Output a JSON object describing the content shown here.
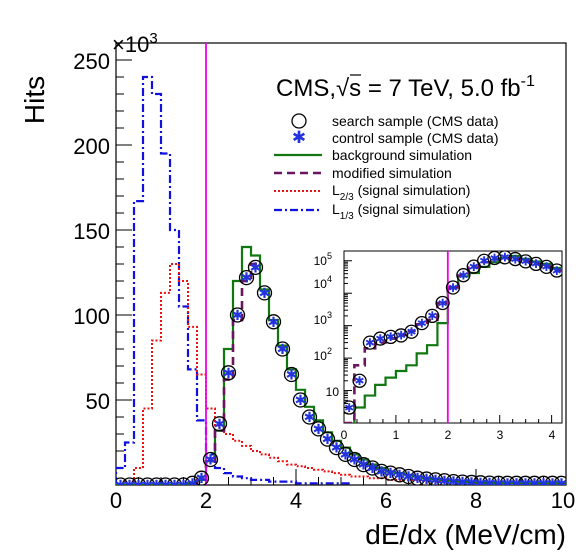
{
  "chart_data": [
    {
      "type": "line",
      "exponent_label": "×10",
      "exponent_power": "3",
      "ylabel": "Hits",
      "xlabel": "dE/dx (MeV/cm)",
      "xlim": [
        0,
        10
      ],
      "ylim": [
        0,
        260
      ],
      "x_ticks": [
        "0",
        "2",
        "4",
        "6",
        "8",
        "10"
      ],
      "y_ticks": [
        "50",
        "100",
        "150",
        "200",
        "250"
      ],
      "cut_line_x": 2,
      "title_parts": {
        "experiment": "CMS,",
        "sqrt": "√s",
        "energy": " = 7 TeV, 5.0 fb",
        "lumi_exp": "-1"
      },
      "legend_entries": [
        {
          "id": "search",
          "label": "search sample (CMS data)",
          "style": "circle"
        },
        {
          "id": "control",
          "label": "control sample (CMS data)",
          "style": "star"
        },
        {
          "id": "background",
          "label": "background simulation",
          "style": "solid"
        },
        {
          "id": "modified",
          "label": "modified simulation",
          "style": "dashed"
        },
        {
          "id": "l23",
          "label_prefix": "L",
          "label_sub": "2/3",
          "label_suffix": " (signal simulation)",
          "style": "dotted"
        },
        {
          "id": "l13",
          "label_prefix": "L",
          "label_sub": "1/3",
          "label_suffix": " (signal simulation)",
          "style": "dashdot"
        }
      ],
      "colors": {
        "background": "#117711",
        "modified": "#6b1560",
        "l23": "#ee1111",
        "l13": "#1111dd",
        "cut": "#ee00ee",
        "control": "#2233dd",
        "search": "#000000"
      },
      "bin_width": 0.2,
      "series": [
        {
          "id": "l13",
          "x": [
            0.0,
            0.2,
            0.4,
            0.6,
            0.8,
            1.0,
            1.2,
            1.4,
            1.6,
            1.8,
            2.0,
            2.2,
            2.4,
            2.6,
            2.8,
            3.0,
            3.2,
            3.4,
            3.6,
            3.8,
            4.0,
            4.4,
            5.0
          ],
          "values": [
            10,
            25,
            167,
            240,
            230,
            195,
            150,
            105,
            68,
            38,
            18,
            10,
            7,
            5,
            4,
            3,
            3,
            2,
            2,
            2,
            1,
            1,
            1
          ]
        },
        {
          "id": "l23",
          "x": [
            0.0,
            0.2,
            0.4,
            0.6,
            0.8,
            1.0,
            1.2,
            1.4,
            1.6,
            1.8,
            2.0,
            2.2,
            2.4,
            2.6,
            2.8,
            3.0,
            3.2,
            3.4,
            3.6,
            3.8,
            4.0,
            4.2,
            4.4,
            4.6,
            4.8,
            5.0,
            5.2,
            5.4,
            5.6,
            5.8,
            6.0,
            6.5,
            7.0,
            7.5,
            8.0
          ],
          "values": [
            0,
            2,
            10,
            45,
            85,
            113,
            130,
            120,
            93,
            65,
            45,
            35,
            30,
            26,
            23,
            20,
            18,
            16,
            14,
            12,
            11,
            10,
            9,
            8,
            7,
            6,
            5,
            5,
            4,
            4,
            3,
            3,
            2,
            2,
            1
          ]
        },
        {
          "id": "background",
          "x": [
            0.0,
            0.2,
            0.4,
            0.6,
            0.8,
            1.0,
            1.2,
            1.4,
            1.6,
            1.8,
            2.0,
            2.2,
            2.4,
            2.6,
            2.8,
            3.0,
            3.2,
            3.4,
            3.6,
            3.8,
            4.0,
            4.2,
            4.4,
            4.6,
            4.8,
            5.0,
            5.2,
            5.4,
            5.6,
            5.8,
            6.0,
            6.2,
            6.4,
            6.6,
            6.8,
            7.0,
            7.2,
            7.4,
            7.6,
            7.8,
            8.0,
            8.2,
            8.4,
            8.6,
            8.8,
            9.0,
            9.2,
            9.4,
            9.6,
            9.8
          ],
          "values": [
            0,
            0,
            0,
            0,
            0,
            0,
            0,
            0,
            1,
            3,
            14,
            32,
            80,
            120,
            140,
            135,
            115,
            97,
            82,
            68,
            56,
            46,
            38,
            31,
            26,
            22,
            18,
            15,
            12,
            10,
            8,
            7,
            6,
            5,
            4,
            3.5,
            3,
            2.5,
            2,
            1.8,
            1.5,
            1.2,
            1,
            1,
            1,
            1,
            1,
            1,
            1,
            1
          ]
        },
        {
          "id": "modified",
          "x": [
            1.8,
            2.0,
            2.2,
            2.4,
            2.6,
            2.8,
            3.0
          ],
          "values": [
            3,
            14,
            32,
            62,
            97,
            120,
            130
          ]
        }
      ],
      "points": [
        {
          "id": "search",
          "x": [
            0.1,
            0.3,
            0.5,
            0.7,
            0.9,
            1.1,
            1.3,
            1.5,
            1.7,
            1.9,
            2.1,
            2.3,
            2.5,
            2.7,
            2.9,
            3.1,
            3.3,
            3.5,
            3.7,
            3.9,
            4.1,
            4.3,
            4.5,
            4.7,
            4.9,
            5.1,
            5.3,
            5.5,
            5.7,
            5.9,
            6.1,
            6.3,
            6.5,
            6.7,
            6.9,
            7.1,
            7.3,
            7.5,
            7.7,
            7.9,
            8.1,
            8.3,
            8.5,
            8.7,
            8.9,
            9.1,
            9.3,
            9.5,
            9.7,
            9.9
          ],
          "values": [
            0,
            0,
            0,
            0,
            0,
            0,
            0,
            0,
            1,
            4,
            15,
            36,
            66,
            100,
            122,
            128,
            113,
            96,
            80,
            65,
            50,
            40,
            33,
            27,
            22,
            18,
            15,
            12,
            10,
            8,
            7,
            6,
            5,
            4,
            3.5,
            3,
            2.5,
            2,
            1.7,
            1.5,
            1.3,
            1.1,
            1,
            1,
            1,
            1,
            1,
            1,
            1,
            1
          ]
        },
        {
          "id": "control",
          "x": [
            0.1,
            0.3,
            0.5,
            0.7,
            0.9,
            1.1,
            1.3,
            1.5,
            1.7,
            1.9,
            2.1,
            2.3,
            2.5,
            2.7,
            2.9,
            3.1,
            3.3,
            3.5,
            3.7,
            3.9,
            4.1,
            4.3,
            4.5,
            4.7,
            4.9,
            5.1,
            5.3,
            5.5,
            5.7,
            5.9,
            6.1,
            6.3,
            6.5,
            6.7,
            6.9,
            7.1,
            7.3,
            7.5,
            7.7,
            7.9,
            8.1,
            8.3,
            8.5,
            8.7,
            8.9,
            9.1,
            9.3,
            9.5,
            9.7,
            9.9
          ],
          "values": [
            0,
            0,
            0,
            0,
            0,
            0,
            0,
            0,
            1,
            4,
            15,
            36,
            66,
            100,
            122,
            128,
            113,
            96,
            80,
            65,
            50,
            40,
            33,
            27,
            22,
            18,
            15,
            12,
            10,
            8,
            7,
            6,
            5,
            4,
            3.5,
            3,
            2.5,
            2,
            1.7,
            1.5,
            1.3,
            1.1,
            1,
            1,
            1,
            1,
            1,
            1,
            1,
            1
          ]
        }
      ]
    },
    {
      "type": "line",
      "xlim": [
        0,
        4.2
      ],
      "ylim": [
        1,
        200000
      ],
      "log_y": true,
      "x_ticks": [
        "0",
        "1",
        "2",
        "3",
        "4"
      ],
      "y_tick_labels": [
        {
          "value": 10,
          "base": "10",
          "exp": ""
        },
        {
          "value": 100,
          "base": "10",
          "exp": "2"
        },
        {
          "value": 1000,
          "base": "10",
          "exp": "3"
        },
        {
          "value": 10000,
          "base": "10",
          "exp": "4"
        },
        {
          "value": 100000,
          "base": "10",
          "exp": "5"
        }
      ],
      "cut_line_x": 2,
      "bin_width": 0.2,
      "series": [
        {
          "id": "background",
          "x": [
            0.2,
            0.4,
            0.6,
            0.8,
            1.0,
            1.2,
            1.4,
            1.6,
            1.8,
            2.0,
            2.2,
            2.4,
            2.6,
            2.8,
            3.0,
            3.2,
            3.4,
            3.6,
            3.8,
            4.0
          ],
          "values": [
            3,
            7,
            15,
            25,
            40,
            60,
            140,
            250,
            1200,
            15000,
            33000,
            42000,
            65000,
            90000,
            120000,
            140000,
            115000,
            95000,
            80000,
            60000
          ]
        },
        {
          "id": "modified",
          "x": [
            0.0,
            0.2,
            0.4,
            0.6,
            0.8,
            1.0,
            1.2,
            1.4,
            1.6,
            1.8,
            2.0,
            2.2,
            2.4,
            2.6,
            2.8,
            3.0,
            3.2,
            3.4,
            3.6,
            3.8,
            4.0
          ],
          "values": [
            1,
            60,
            200,
            300,
            400,
            520,
            700,
            1100,
            1500,
            5000,
            15000,
            35000,
            62000,
            90000,
            110000,
            120000,
            112000,
            95000,
            80000,
            65000,
            50000
          ]
        }
      ],
      "points": [
        {
          "id": "search",
          "x": [
            0.1,
            0.3,
            0.5,
            0.7,
            0.9,
            1.1,
            1.3,
            1.5,
            1.7,
            1.9,
            2.1,
            2.3,
            2.5,
            2.7,
            2.9,
            3.1,
            3.3,
            3.5,
            3.7,
            3.9,
            4.1
          ],
          "values": [
            3,
            20,
            300,
            400,
            450,
            500,
            650,
            1200,
            2000,
            5000,
            15000,
            36000,
            66000,
            100000,
            122000,
            128000,
            113000,
            96000,
            80000,
            65000,
            50000
          ]
        },
        {
          "id": "control",
          "x": [
            0.1,
            0.3,
            0.5,
            0.7,
            0.9,
            1.1,
            1.3,
            1.5,
            1.7,
            1.9,
            2.1,
            2.3,
            2.5,
            2.7,
            2.9,
            3.1,
            3.3,
            3.5,
            3.7,
            3.9,
            4.1
          ],
          "values": [
            3,
            20,
            300,
            400,
            450,
            500,
            650,
            1200,
            2000,
            5000,
            15000,
            36000,
            66000,
            100000,
            122000,
            128000,
            113000,
            96000,
            80000,
            65000,
            50000
          ]
        }
      ]
    }
  ]
}
